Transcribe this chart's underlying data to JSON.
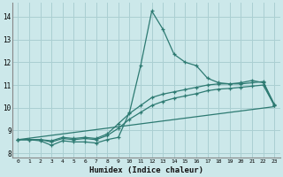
{
  "xlabel": "Humidex (Indice chaleur)",
  "xlim": [
    -0.5,
    23.5
  ],
  "ylim": [
    7.8,
    14.6
  ],
  "yticks": [
    8,
    9,
    10,
    11,
    12,
    13,
    14
  ],
  "xticks": [
    0,
    1,
    2,
    3,
    4,
    5,
    6,
    7,
    8,
    9,
    10,
    11,
    12,
    13,
    14,
    15,
    16,
    17,
    18,
    19,
    20,
    21,
    22,
    23
  ],
  "background_color": "#cce8ea",
  "grid_color": "#aacfd2",
  "line_color": "#2d7a72",
  "lines": [
    {
      "x": [
        0,
        1,
        2,
        3,
        4,
        5,
        6,
        7,
        8,
        9,
        10,
        11,
        12,
        13,
        14,
        15,
        16,
        17,
        18,
        19,
        20,
        21,
        22,
        23
      ],
      "y": [
        8.6,
        8.6,
        8.55,
        8.35,
        8.55,
        8.5,
        8.5,
        8.45,
        8.6,
        8.7,
        9.8,
        11.85,
        14.25,
        13.45,
        12.35,
        12.0,
        11.85,
        11.3,
        11.1,
        11.05,
        11.1,
        11.2,
        11.1,
        10.1
      ],
      "marker": true
    },
    {
      "x": [
        0,
        1,
        2,
        3,
        4,
        5,
        6,
        7,
        8,
        9,
        10,
        11,
        12,
        13,
        14,
        15,
        16,
        17,
        18,
        19,
        20,
        21,
        22,
        23
      ],
      "y": [
        8.6,
        8.6,
        8.6,
        8.55,
        8.7,
        8.65,
        8.7,
        8.65,
        8.85,
        9.3,
        9.75,
        10.1,
        10.45,
        10.6,
        10.7,
        10.8,
        10.9,
        11.0,
        11.05,
        11.05,
        11.05,
        11.1,
        11.15,
        10.15
      ],
      "marker": true
    },
    {
      "x": [
        0,
        1,
        2,
        3,
        4,
        5,
        6,
        7,
        8,
        9,
        10,
        11,
        12,
        13,
        14,
        15,
        16,
        17,
        18,
        19,
        20,
        21,
        22,
        23
      ],
      "y": [
        8.6,
        8.6,
        8.6,
        8.5,
        8.65,
        8.6,
        8.65,
        8.6,
        8.78,
        9.1,
        9.5,
        9.8,
        10.1,
        10.28,
        10.42,
        10.52,
        10.62,
        10.75,
        10.82,
        10.85,
        10.9,
        10.95,
        11.0,
        10.1
      ],
      "marker": true
    },
    {
      "x": [
        0,
        23
      ],
      "y": [
        8.6,
        10.05
      ],
      "marker": false
    }
  ]
}
